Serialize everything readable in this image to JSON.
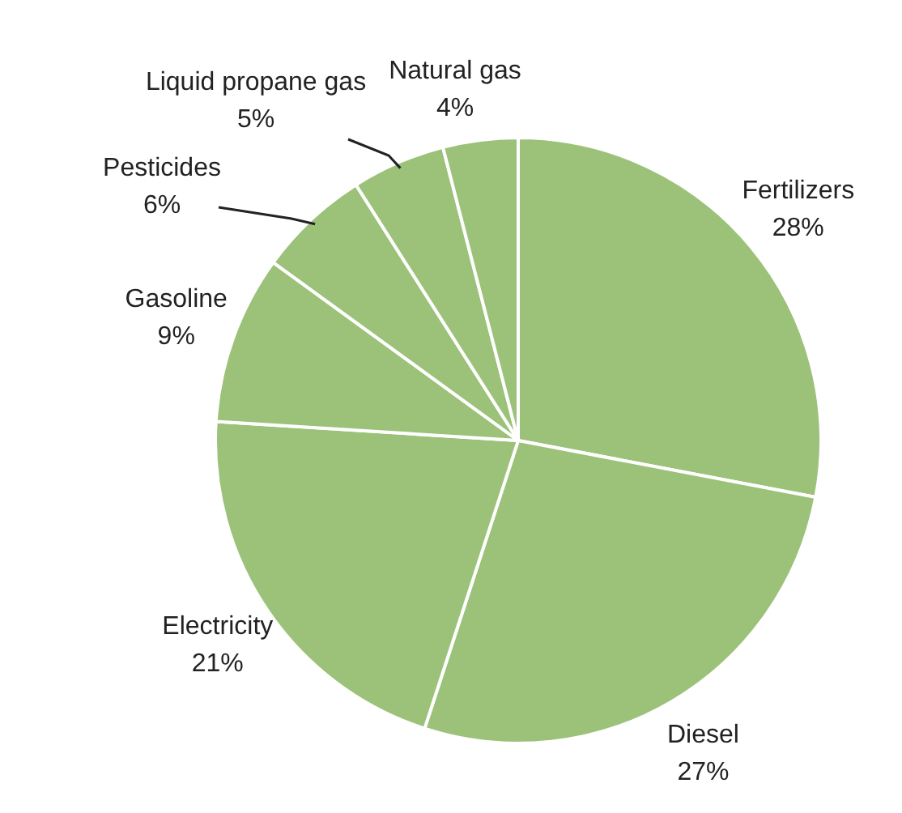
{
  "chart_data": {
    "type": "pie",
    "categories": [
      "Fertilizers",
      "Diesel",
      "Electricity",
      "Gasoline",
      "Pesticides",
      "Liquid propane gas",
      "Natural gas"
    ],
    "values": [
      28,
      27,
      21,
      9,
      6,
      5,
      4
    ],
    "colors": [
      "#9cc27a",
      "#9cc27a",
      "#9cc27a",
      "#9cc27a",
      "#9cc27a",
      "#9cc27a",
      "#9cc27a"
    ],
    "value_labels": [
      "28%",
      "27%",
      "21%",
      "9%",
      "6%",
      "5%",
      "4%"
    ],
    "legend": false
  }
}
